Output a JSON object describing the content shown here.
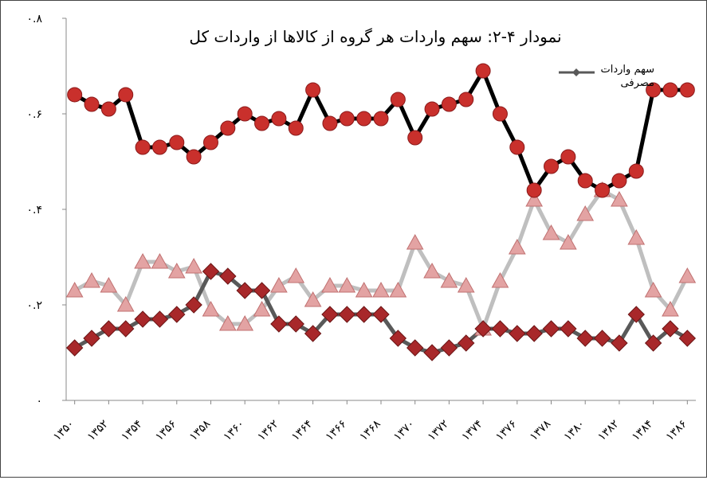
{
  "chart_data": {
    "type": "line",
    "title": "نمودار ۴-۲: سهم واردات هر گروه از کالاها از واردات کل",
    "categories": [
      "۱۳۵۰",
      null,
      "۱۳۵۲",
      null,
      "۱۳۵۴",
      null,
      "۱۳۵۶",
      null,
      "۱۳۵۸",
      null,
      "۱۳۶۰",
      null,
      "۱۳۶۲",
      null,
      "۱۳۶۴",
      null,
      "۱۳۶۶",
      null,
      "۱۳۶۸",
      null,
      "۱۳۷۰",
      null,
      "۱۳۷۲",
      null,
      "۱۳۷۴",
      null,
      "۱۳۷۶",
      null,
      "۱۳۷۸",
      null,
      "۱۳۸۰",
      null,
      "۱۳۸۲",
      null,
      "۱۳۸۴",
      null,
      "۱۳۸۶"
    ],
    "series": [
      {
        "color": "#c9302c",
        "line_color": "#000000",
        "marker": "circle",
        "values": [
          0.64,
          0.62,
          0.61,
          0.64,
          0.53,
          0.53,
          0.54,
          0.51,
          0.54,
          0.57,
          0.6,
          0.58,
          0.59,
          0.57,
          0.65,
          0.58,
          0.59,
          0.59,
          0.59,
          0.63,
          0.55,
          0.61,
          0.62,
          0.63,
          0.69,
          0.6,
          0.53,
          0.44,
          0.49,
          0.51,
          0.46,
          0.44,
          0.46,
          0.48,
          0.65,
          0.65,
          0.65
        ]
      },
      {
        "color": "#e3a3a3",
        "line_color": "#bfbfbf",
        "marker": "triangle",
        "values": [
          0.23,
          0.25,
          0.24,
          0.2,
          0.29,
          0.29,
          0.27,
          0.28,
          0.19,
          0.16,
          0.16,
          0.19,
          0.24,
          0.26,
          0.21,
          0.24,
          0.24,
          0.23,
          0.23,
          0.23,
          0.33,
          0.27,
          0.25,
          0.24,
          0.15,
          0.25,
          0.32,
          0.42,
          0.35,
          0.33,
          0.39,
          0.44,
          0.42,
          0.34,
          0.23,
          0.19,
          0.26
        ]
      },
      {
        "name": "سهم واردات مصرفی",
        "color": "#a8282a",
        "line_color": "#595959",
        "marker": "diamond",
        "values": [
          0.11,
          0.13,
          0.15,
          0.15,
          0.17,
          0.17,
          0.18,
          0.2,
          0.27,
          0.26,
          0.23,
          0.23,
          0.16,
          0.16,
          0.14,
          0.18,
          0.18,
          0.18,
          0.18,
          0.13,
          0.11,
          0.1,
          0.11,
          0.12,
          0.15,
          0.15,
          0.14,
          0.14,
          0.15,
          0.15,
          0.13,
          0.13,
          0.12,
          0.18,
          0.12,
          0.15,
          0.13
        ]
      }
    ],
    "ylim": [
      0,
      0.8
    ],
    "yticks": [
      {
        "value": 0,
        "label": "۰"
      },
      {
        "value": 0.2,
        "label": "۰.۲"
      },
      {
        "value": 0.4,
        "label": "۰.۴"
      },
      {
        "value": 0.6,
        "label": "۰.۶"
      },
      {
        "value": 0.8,
        "label": "۰.۸"
      }
    ],
    "grid": false
  }
}
